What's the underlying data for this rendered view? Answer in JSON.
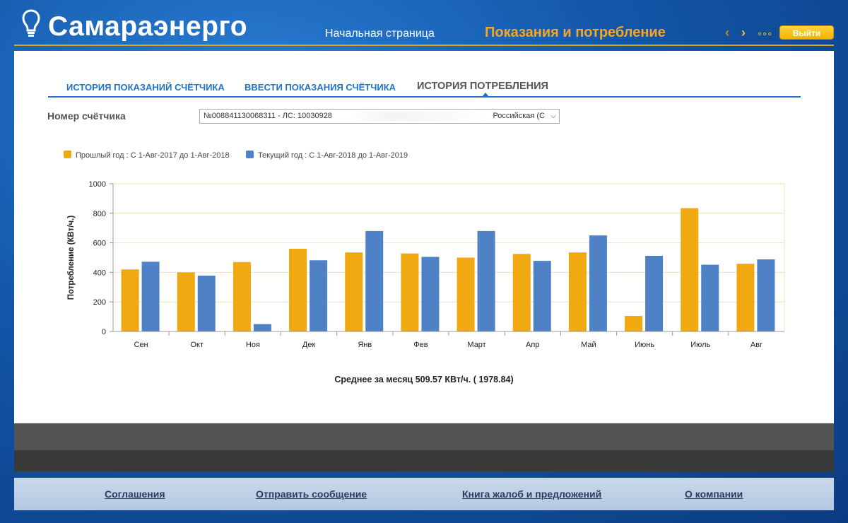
{
  "header": {
    "logo_text": "Самараэнерго",
    "logo_icon": "lightbulb-icon",
    "nav_home": "Начальная страница",
    "nav_current": "Показания и потребление",
    "arrow_left": "‹",
    "arrow_right": "›",
    "more": "∘∘∘",
    "logout": "Выйти",
    "accent_color": "#f5a623"
  },
  "tabs": [
    {
      "label": "ИСТОРИЯ ПОКАЗАНИЙ СЧЁТЧИКА"
    },
    {
      "label": "ВВЕСТИ ПОКАЗАНИЯ СЧЁТЧИКА"
    },
    {
      "label": "ИСТОРИЯ ПОТРЕБЛЕНИЯ",
      "active": true
    }
  ],
  "meter": {
    "label": "Номер счётчика",
    "selected_left": "№008841130068311  -  ЛС: 10030928",
    "selected_right": "Российская (С"
  },
  "legend": {
    "previous": "Прошлый год : С 1-Авг-2017 до 1-Авг-2018",
    "current": "Текущий год : С 1-Авг-2018 до 1-Авг-2019"
  },
  "chart_data": {
    "type": "bar",
    "ylabel": "Потребление (КВт/ч.)",
    "ylim": [
      0,
      1000
    ],
    "yticks": [
      "0",
      "200",
      "400",
      "600",
      "800",
      "1000"
    ],
    "categories": [
      "Сен",
      "Окт",
      "Ноя",
      "Дек",
      "Янв",
      "Фев",
      "Март",
      "Апр",
      "Май",
      "Июнь",
      "Июль",
      "Авг"
    ],
    "series": [
      {
        "name": "Прошлый год : С 1-Авг-2017 до 1-Авг-2018",
        "color": "#f0a910",
        "values": [
          420,
          400,
          470,
          560,
          535,
          528,
          500,
          525,
          535,
          105,
          835,
          458
        ]
      },
      {
        "name": "Текущий год : С 1-Авг-2018 до 1-Авг-2019",
        "color": "#4f81c7",
        "values": [
          472,
          378,
          50,
          482,
          680,
          505,
          680,
          478,
          650,
          512,
          452,
          488
        ]
      }
    ],
    "grid": true,
    "legend_position": "top-left"
  },
  "average_text": "Среднее за месяц 509.57 КВт/ч. ( 1978.84)",
  "footer": {
    "links": [
      "Соглашения",
      "Отправить сообщение",
      "Книга жалоб и предложений",
      "О компании"
    ]
  }
}
